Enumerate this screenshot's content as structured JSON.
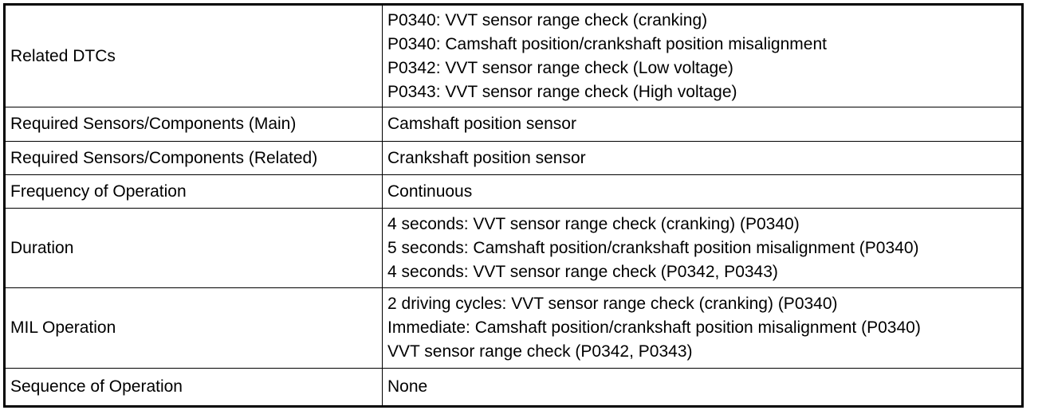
{
  "rows": [
    {
      "label": "Related DTCs",
      "lines": [
        "P0340: VVT sensor range check (cranking)",
        "P0340: Camshaft position/crankshaft position misalignment",
        "P0342: VVT sensor range check (Low voltage)",
        "P0343: VVT sensor range check (High voltage)"
      ]
    },
    {
      "label": "Required Sensors/Components (Main)",
      "lines": [
        "Camshaft position sensor"
      ]
    },
    {
      "label": "Required Sensors/Components (Related)",
      "lines": [
        "Crankshaft position sensor"
      ]
    },
    {
      "label": "Frequency of Operation",
      "lines": [
        "Continuous"
      ]
    },
    {
      "label": "Duration",
      "lines": [
        "4 seconds: VVT sensor range check (cranking) (P0340)",
        "5 seconds: Camshaft position/crankshaft position misalignment (P0340)",
        "4 seconds: VVT sensor range check (P0342, P0343)"
      ]
    },
    {
      "label": "MIL Operation",
      "lines": [
        "2 driving cycles: VVT sensor range check (cranking) (P0340)",
        "Immediate: Camshaft position/crankshaft position misalignment (P0340)",
        "VVT sensor range check (P0342, P0343)"
      ]
    },
    {
      "label": "Sequence of Operation",
      "lines": [
        "None"
      ]
    }
  ]
}
